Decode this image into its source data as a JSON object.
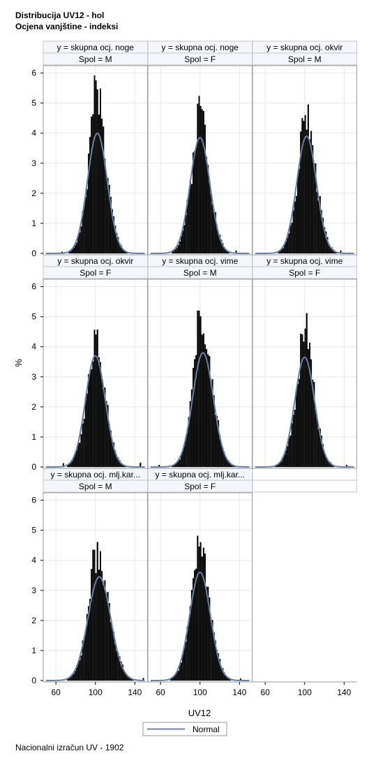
{
  "titles": {
    "line1": "Distribucija UV12 - hol",
    "line2": "Ocjena vanjštine - indeksi"
  },
  "footnote": "Nacionalni izračun UV - 1902",
  "colors": {
    "bar_fill": "#000000",
    "bar_outline": "#000000",
    "normal_curve": "#6a80a0",
    "header_fill": "#f4f6fb",
    "grid": "#e8e8e8",
    "frame": "#9a9a9a"
  },
  "chart_data": {
    "type": "histogram-panel",
    "xlabel": "UV12",
    "ylabel": "%",
    "xlim": [
      50,
      150
    ],
    "ylim": [
      0,
      6.2
    ],
    "xticks": [
      60,
      100,
      140
    ],
    "yticks": [
      0,
      1,
      2,
      3,
      4,
      5,
      6
    ],
    "legend": {
      "position": "bottom-center",
      "entries": [
        "Normal"
      ]
    },
    "grid": true,
    "panels": [
      {
        "row_label": "y = skupna ocj. noge",
        "col_label": "Spol = M",
        "peak_x": 100,
        "peak_pct": 5.75,
        "normal_mean": 102,
        "normal_sd": 10,
        "normal_peak_pct": 4.0
      },
      {
        "row_label": "y = skupna ocj. noge",
        "col_label": "Spol = F",
        "peak_x": 100,
        "peak_pct": 4.9,
        "normal_mean": 100,
        "normal_sd": 10,
        "normal_peak_pct": 3.85
      },
      {
        "row_label": "y = skupna ocj. okvir",
        "col_label": "Spol = M",
        "peak_x": 100,
        "peak_pct": 4.6,
        "normal_mean": 102,
        "normal_sd": 10,
        "normal_peak_pct": 3.9
      },
      {
        "row_label": "y = skupna ocj. okvir",
        "col_label": "Spol = F",
        "peak_x": 100,
        "peak_pct": 4.4,
        "normal_mean": 100,
        "normal_sd": 10,
        "normal_peak_pct": 3.7
      },
      {
        "row_label": "y = skupna ocj. vime",
        "col_label": "Spol = M",
        "peak_x": 98,
        "peak_pct": 5.2,
        "normal_mean": 103,
        "normal_sd": 10.5,
        "normal_peak_pct": 3.8
      },
      {
        "row_label": "y = skupna ocj. vime",
        "col_label": "Spol = F",
        "peak_x": 100,
        "peak_pct": 4.6,
        "normal_mean": 100,
        "normal_sd": 10,
        "normal_peak_pct": 3.65
      },
      {
        "row_label": "y = skupna ocj. mlj.kar...",
        "col_label": "Spol = M",
        "peak_x": 98,
        "peak_pct": 4.35,
        "normal_mean": 104,
        "normal_sd": 11.5,
        "normal_peak_pct": 3.45
      },
      {
        "row_label": "y = skupna ocj. mlj.kar...",
        "col_label": "Spol = F",
        "peak_x": 100,
        "peak_pct": 4.6,
        "normal_mean": 100,
        "normal_sd": 10.5,
        "normal_peak_pct": 3.6
      }
    ]
  }
}
